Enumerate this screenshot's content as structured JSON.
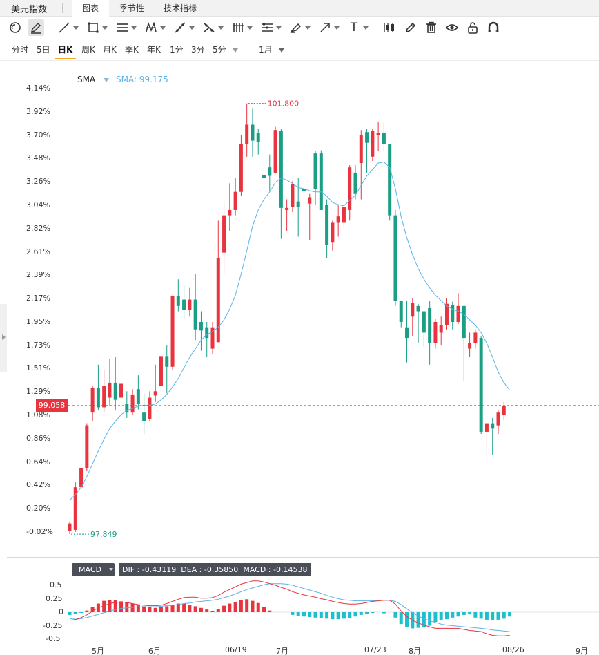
{
  "header": {
    "app_title": "美元指数",
    "tabs": [
      {
        "label": "图表",
        "active": true
      },
      {
        "label": "季节性",
        "active": false
      },
      {
        "label": "技术指标",
        "active": false
      }
    ]
  },
  "toolbar": {
    "tools": [
      "cursor-icon",
      "pencil-draw-icon",
      "trend-line-icon",
      "rectangle-icon",
      "parallel-channel-icon",
      "pattern-icon",
      "fibonacci-icon",
      "pitchfork-icon",
      "gann-icon",
      "ruler-icon",
      "brush-icon",
      "arrow-icon",
      "text-icon",
      "candle-icon",
      "edit-icon",
      "trash-icon",
      "eye-icon",
      "lock-icon",
      "magnet-icon"
    ],
    "text_tool_label": "T"
  },
  "periods": {
    "items": [
      "分时",
      "5日",
      "日K",
      "周K",
      "月K",
      "季K",
      "年K",
      "1分",
      "3分",
      "5分"
    ],
    "active": "日K",
    "range": "1月"
  },
  "chart": {
    "indicator": "SMA",
    "sma_value_text": "SMA: 99.175",
    "current_price": "99.058",
    "high_label": "101.800",
    "low_label": "97.849",
    "colors": {
      "up": "#e8343f",
      "down": "#1a9f85",
      "sma": "#5bb3e8",
      "dif": "#e8343f",
      "dea": "#5bb3e8",
      "hist_pos": "#e8343f",
      "hist_neg": "#1cc0cc"
    }
  },
  "chart_data": [
    {
      "type": "candlestick",
      "title": "",
      "y_tick_labels": [
        "4.14%",
        "3.92%",
        "3.70%",
        "3.48%",
        "3.26%",
        "3.04%",
        "2.82%",
        "2.61%",
        "2.39%",
        "2.17%",
        "1.95%",
        "1.73%",
        "1.51%",
        "1.29%",
        "1.08%",
        "0.86%",
        "0.64%",
        "0.42%",
        "0.20%",
        "-0.02%"
      ],
      "x_tick_labels": [
        "5月",
        "6月",
        "06/19",
        "7月",
        "07/23",
        "8月",
        "08/26",
        "9月"
      ],
      "ylim_percent": [
        -0.02,
        4.14
      ],
      "candles": [
        {
          "o": -0.01,
          "h": 0.08,
          "l": -0.04,
          "c": 0.06
        },
        {
          "o": 0.0,
          "h": 0.45,
          "l": -0.02,
          "c": 0.4
        },
        {
          "o": 0.4,
          "h": 0.62,
          "l": 0.38,
          "c": 0.58
        },
        {
          "o": 0.58,
          "h": 1.0,
          "l": 0.55,
          "c": 0.98
        },
        {
          "o": 1.1,
          "h": 1.35,
          "l": 1.02,
          "c": 1.33
        },
        {
          "o": 1.33,
          "h": 1.55,
          "l": 1.12,
          "c": 1.15
        },
        {
          "o": 1.15,
          "h": 1.5,
          "l": 1.1,
          "c": 1.35
        },
        {
          "o": 1.24,
          "h": 1.6,
          "l": 1.16,
          "c": 1.38
        },
        {
          "o": 1.38,
          "h": 1.62,
          "l": 1.12,
          "c": 1.22
        },
        {
          "o": 1.24,
          "h": 1.55,
          "l": 1.2,
          "c": 1.37
        },
        {
          "o": 1.18,
          "h": 1.3,
          "l": 1.05,
          "c": 1.1
        },
        {
          "o": 1.1,
          "h": 1.32,
          "l": 1.08,
          "c": 1.27
        },
        {
          "o": 1.32,
          "h": 1.45,
          "l": 1.13,
          "c": 1.18
        },
        {
          "o": 1.1,
          "h": 1.28,
          "l": 0.9,
          "c": 1.02
        },
        {
          "o": 1.04,
          "h": 1.3,
          "l": 1.02,
          "c": 1.24
        },
        {
          "o": 1.26,
          "h": 1.55,
          "l": 1.2,
          "c": 1.3
        },
        {
          "o": 1.35,
          "h": 1.65,
          "l": 1.24,
          "c": 1.63
        },
        {
          "o": 1.63,
          "h": 1.73,
          "l": 1.28,
          "c": 1.53
        },
        {
          "o": 1.53,
          "h": 2.2,
          "l": 1.5,
          "c": 2.19
        },
        {
          "o": 2.19,
          "h": 2.35,
          "l": 2.05,
          "c": 2.1
        },
        {
          "o": 2.16,
          "h": 2.3,
          "l": 1.98,
          "c": 2.06
        },
        {
          "o": 2.06,
          "h": 2.27,
          "l": 2.0,
          "c": 2.16
        },
        {
          "o": 2.16,
          "h": 2.4,
          "l": 1.78,
          "c": 1.88
        },
        {
          "o": 1.95,
          "h": 2.05,
          "l": 1.68,
          "c": 1.87
        },
        {
          "o": 1.9,
          "h": 1.95,
          "l": 1.62,
          "c": 1.8
        },
        {
          "o": 1.7,
          "h": 1.95,
          "l": 1.65,
          "c": 1.9
        },
        {
          "o": 1.76,
          "h": 2.9,
          "l": 1.76,
          "c": 2.55
        },
        {
          "o": 2.6,
          "h": 3.07,
          "l": 2.4,
          "c": 2.95
        },
        {
          "o": 2.95,
          "h": 3.25,
          "l": 2.8,
          "c": 3.0
        },
        {
          "o": 3.0,
          "h": 3.3,
          "l": 2.95,
          "c": 3.17
        },
        {
          "o": 3.17,
          "h": 3.7,
          "l": 3.13,
          "c": 3.62
        },
        {
          "o": 3.62,
          "h": 4.0,
          "l": 3.5,
          "c": 3.8
        },
        {
          "o": 3.8,
          "h": 3.95,
          "l": 3.5,
          "c": 3.65
        },
        {
          "o": 3.72,
          "h": 3.76,
          "l": 3.52,
          "c": 3.64
        },
        {
          "o": 3.33,
          "h": 3.45,
          "l": 3.2,
          "c": 3.3
        },
        {
          "o": 3.4,
          "h": 3.52,
          "l": 3.18,
          "c": 3.32
        },
        {
          "o": 3.35,
          "h": 3.78,
          "l": 3.34,
          "c": 3.75
        },
        {
          "o": 3.74,
          "h": 3.76,
          "l": 2.73,
          "c": 3.02
        },
        {
          "o": 3.0,
          "h": 3.1,
          "l": 2.8,
          "c": 3.02
        },
        {
          "o": 3.03,
          "h": 3.27,
          "l": 2.98,
          "c": 3.24
        },
        {
          "o": 3.08,
          "h": 3.3,
          "l": 2.75,
          "c": 3.03
        },
        {
          "o": 3.2,
          "h": 3.3,
          "l": 3.0,
          "c": 3.18
        },
        {
          "o": 3.06,
          "h": 3.15,
          "l": 2.72,
          "c": 3.12
        },
        {
          "o": 3.53,
          "h": 3.55,
          "l": 3.05,
          "c": 3.2
        },
        {
          "o": 3.53,
          "h": 3.56,
          "l": 3.0,
          "c": 3.0
        },
        {
          "o": 3.05,
          "h": 3.1,
          "l": 2.55,
          "c": 2.67
        },
        {
          "o": 2.7,
          "h": 2.9,
          "l": 2.62,
          "c": 2.88
        },
        {
          "o": 2.88,
          "h": 3.05,
          "l": 2.75,
          "c": 2.94
        },
        {
          "o": 2.88,
          "h": 3.05,
          "l": 2.82,
          "c": 3.03
        },
        {
          "o": 3.0,
          "h": 3.42,
          "l": 2.9,
          "c": 3.4
        },
        {
          "o": 3.35,
          "h": 3.42,
          "l": 3.1,
          "c": 3.15
        },
        {
          "o": 3.44,
          "h": 3.75,
          "l": 3.1,
          "c": 3.7
        },
        {
          "o": 3.73,
          "h": 3.76,
          "l": 3.35,
          "c": 3.63
        },
        {
          "o": 3.5,
          "h": 3.76,
          "l": 3.46,
          "c": 3.74
        },
        {
          "o": 3.7,
          "h": 3.83,
          "l": 3.55,
          "c": 3.72
        },
        {
          "o": 3.72,
          "h": 3.82,
          "l": 3.55,
          "c": 3.62
        },
        {
          "o": 3.62,
          "h": 3.62,
          "l": 2.9,
          "c": 2.95
        },
        {
          "o": 2.95,
          "h": 3.0,
          "l": 2.1,
          "c": 2.15
        },
        {
          "o": 2.15,
          "h": 2.15,
          "l": 1.9,
          "c": 1.95
        },
        {
          "o": 1.9,
          "h": 2.15,
          "l": 1.57,
          "c": 1.8
        },
        {
          "o": 2.0,
          "h": 2.17,
          "l": 1.82,
          "c": 2.13
        },
        {
          "o": 2.1,
          "h": 2.12,
          "l": 1.75,
          "c": 2.05
        },
        {
          "o": 2.05,
          "h": 2.05,
          "l": 1.72,
          "c": 1.85
        },
        {
          "o": 2.08,
          "h": 2.15,
          "l": 1.55,
          "c": 1.75
        },
        {
          "o": 1.75,
          "h": 1.98,
          "l": 1.7,
          "c": 1.95
        },
        {
          "o": 1.85,
          "h": 2.0,
          "l": 1.73,
          "c": 1.92
        },
        {
          "o": 1.92,
          "h": 2.17,
          "l": 1.88,
          "c": 2.12
        },
        {
          "o": 2.11,
          "h": 2.14,
          "l": 1.88,
          "c": 1.95
        },
        {
          "o": 1.95,
          "h": 2.22,
          "l": 1.93,
          "c": 2.1
        },
        {
          "o": 2.1,
          "h": 2.1,
          "l": 1.4,
          "c": 1.8
        },
        {
          "o": 1.7,
          "h": 1.85,
          "l": 1.62,
          "c": 1.75
        },
        {
          "o": 1.75,
          "h": 1.88,
          "l": 1.7,
          "c": 1.85
        },
        {
          "o": 1.8,
          "h": 1.82,
          "l": 0.9,
          "c": 0.92
        },
        {
          "o": 0.92,
          "h": 1.0,
          "l": 0.7,
          "c": 1.0
        },
        {
          "o": 1.0,
          "h": 1.05,
          "l": 0.7,
          "c": 0.95
        },
        {
          "o": 0.98,
          "h": 1.12,
          "l": 0.9,
          "c": 1.1
        },
        {
          "o": 1.08,
          "h": 1.2,
          "l": 1.03,
          "c": 1.16
        }
      ],
      "sma": [
        0.28,
        0.33,
        0.4,
        0.5,
        0.62,
        0.74,
        0.85,
        0.95,
        1.02,
        1.08,
        1.12,
        1.14,
        1.16,
        1.17,
        1.17,
        1.18,
        1.22,
        1.27,
        1.34,
        1.42,
        1.52,
        1.62,
        1.7,
        1.78,
        1.83,
        1.86,
        1.9,
        1.97,
        2.07,
        2.2,
        2.4,
        2.62,
        2.85,
        3.0,
        3.1,
        3.17,
        3.26,
        3.3,
        3.28,
        3.25,
        3.21,
        3.2,
        3.18,
        3.17,
        3.17,
        3.13,
        3.07,
        3.05,
        3.04,
        3.09,
        3.14,
        3.23,
        3.32,
        3.38,
        3.44,
        3.45,
        3.4,
        3.2,
        2.94,
        2.74,
        2.58,
        2.45,
        2.35,
        2.27,
        2.2,
        2.15,
        2.1,
        2.07,
        2.05,
        2.02,
        1.97,
        1.92,
        1.85,
        1.75,
        1.62,
        1.48,
        1.38,
        1.31
      ]
    },
    {
      "type": "bar",
      "title": "MACD",
      "series_labels": {
        "dif": "DIF : -0.43119",
        "dea": "DEA : -0.35850",
        "macd": "MACD : -0.14538"
      },
      "y_tick_labels": [
        "0.5",
        "0.25",
        "0",
        "-0.25",
        "-0.5"
      ],
      "ylim": [
        -0.5,
        0.5
      ],
      "histogram": [
        -0.05,
        -0.03,
        -0.01,
        0.03,
        0.09,
        0.16,
        0.21,
        0.23,
        0.22,
        0.2,
        0.18,
        0.16,
        0.14,
        0.11,
        0.09,
        0.08,
        0.09,
        0.11,
        0.14,
        0.16,
        0.16,
        0.14,
        0.11,
        0.08,
        0.05,
        0.02,
        0.06,
        0.12,
        0.16,
        0.19,
        0.22,
        0.24,
        0.21,
        0.17,
        0.09,
        0.03,
        null,
        null,
        null,
        -0.05,
        -0.07,
        -0.08,
        -0.09,
        -0.1,
        -0.11,
        -0.12,
        -0.13,
        -0.13,
        -0.12,
        -0.11,
        -0.08,
        -0.05,
        -0.03,
        -0.01,
        null,
        -0.02,
        null,
        -0.1,
        -0.22,
        -0.28,
        -0.3,
        -0.29,
        -0.28,
        -0.25,
        -0.18,
        -0.15,
        -0.13,
        -0.1,
        -0.08,
        -0.05,
        -0.04,
        -0.1,
        -0.12,
        -0.14,
        -0.15,
        -0.14,
        -0.12,
        -0.08
      ],
      "dif": [
        -0.15,
        -0.14,
        -0.1,
        -0.05,
        0.02,
        0.08,
        0.12,
        0.16,
        0.18,
        0.19,
        0.18,
        0.16,
        0.14,
        0.13,
        0.12,
        0.12,
        0.13,
        0.16,
        0.2,
        0.24,
        0.27,
        0.28,
        0.28,
        0.26,
        0.26,
        0.27,
        0.31,
        0.37,
        0.42,
        0.47,
        0.52,
        0.55,
        0.58,
        0.58,
        0.56,
        0.53,
        0.5,
        0.46,
        0.43,
        0.38,
        0.35,
        0.32,
        0.3,
        0.28,
        0.25,
        0.23,
        0.2,
        0.18,
        0.16,
        0.15,
        0.15,
        0.16,
        0.18,
        0.2,
        0.21,
        0.22,
        0.22,
        0.15,
        0.02,
        -0.08,
        -0.15,
        -0.2,
        -0.24,
        -0.27,
        -0.3,
        -0.3,
        -0.3,
        -0.3,
        -0.3,
        -0.32,
        -0.34,
        -0.35,
        -0.36,
        -0.4,
        -0.43,
        -0.44,
        -0.44,
        -0.43
      ],
      "dea": [
        -0.12,
        -0.13,
        -0.12,
        -0.1,
        -0.07,
        -0.04,
        -0.01,
        0.02,
        0.05,
        0.07,
        0.08,
        0.09,
        0.1,
        0.1,
        0.1,
        0.1,
        0.11,
        0.12,
        0.13,
        0.14,
        0.16,
        0.17,
        0.19,
        0.2,
        0.21,
        0.22,
        0.24,
        0.27,
        0.3,
        0.34,
        0.38,
        0.42,
        0.45,
        0.48,
        0.51,
        0.53,
        0.53,
        0.53,
        0.52,
        0.5,
        0.47,
        0.44,
        0.41,
        0.38,
        0.35,
        0.31,
        0.28,
        0.25,
        0.23,
        0.22,
        0.21,
        0.21,
        0.21,
        0.21,
        0.22,
        0.22,
        0.22,
        0.2,
        0.14,
        0.06,
        -0.01,
        -0.07,
        -0.12,
        -0.16,
        -0.19,
        -0.22,
        -0.24,
        -0.25,
        -0.26,
        -0.27,
        -0.28,
        -0.29,
        -0.3,
        -0.31,
        -0.33,
        -0.34,
        -0.35,
        -0.36
      ]
    }
  ]
}
